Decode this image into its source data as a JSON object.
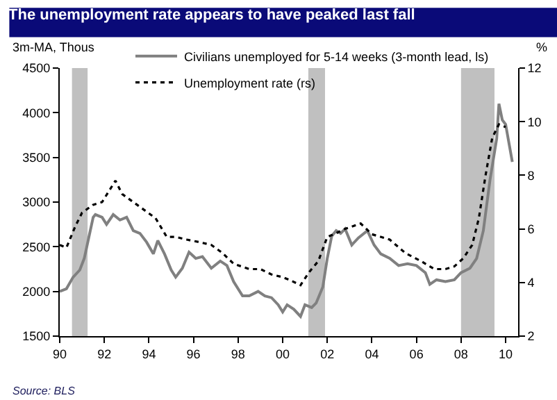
{
  "chart_data": {
    "type": "line",
    "title": "The unemployment rate appears to have peaked last fall",
    "ylabel": "3m-MA, Thous",
    "y2label": "%",
    "annotations": [
      "Source: BLS"
    ],
    "xlim": [
      1990,
      2010.56
    ],
    "xticks": [
      {
        "value": 1990,
        "label": "90"
      },
      {
        "value": 1992,
        "label": "92"
      },
      {
        "value": 1994,
        "label": "94"
      },
      {
        "value": 1996,
        "label": "96"
      },
      {
        "value": 1998,
        "label": "98"
      },
      {
        "value": 2000,
        "label": "00"
      },
      {
        "value": 2002,
        "label": "02"
      },
      {
        "value": 2004,
        "label": "04"
      },
      {
        "value": 2006,
        "label": "06"
      },
      {
        "value": 2008,
        "label": "08"
      },
      {
        "value": 2010,
        "label": "10"
      }
    ],
    "ylim": [
      1500,
      4500
    ],
    "yticks": [
      1500,
      2000,
      2500,
      3000,
      3500,
      4000,
      4500
    ],
    "y2lim": [
      2,
      12
    ],
    "y2ticks": [
      2,
      4,
      6,
      8,
      10,
      12
    ],
    "grid": false,
    "legend": "top",
    "bands": [
      {
        "axis": "x",
        "from": 1990.55,
        "to": 1991.25,
        "color": "#c0c0c0"
      },
      {
        "axis": "x",
        "from": 2001.15,
        "to": 2001.9,
        "color": "#c0c0c0"
      },
      {
        "axis": "x",
        "from": 2008.0,
        "to": 2009.5,
        "color": "#c0c0c0"
      }
    ],
    "series": [
      {
        "name": "Civilians unemployed for 5-14 weeks (3-month lead, ls)",
        "color": "#808080",
        "line_style": "solid",
        "x": [
          1990.0,
          1990.3,
          1990.6,
          1990.9,
          1991.1,
          1991.3,
          1991.5,
          1991.6,
          1991.9,
          1992.1,
          1992.4,
          1992.7,
          1993.0,
          1993.3,
          1993.6,
          1993.9,
          1994.2,
          1994.4,
          1994.7,
          1995.0,
          1995.2,
          1995.5,
          1995.8,
          1996.1,
          1996.4,
          1996.8,
          1997.2,
          1997.5,
          1997.8,
          1998.2,
          1998.5,
          1998.9,
          1999.2,
          1999.5,
          1999.8,
          2000.0,
          2000.2,
          2000.5,
          2000.8,
          2001.0,
          2001.3,
          2001.5,
          2001.8,
          2002.0,
          2002.2,
          2002.4,
          2002.6,
          2002.8,
          2003.1,
          2003.4,
          2003.8,
          2004.1,
          2004.4,
          2004.8,
          2005.2,
          2005.6,
          2006.0,
          2006.4,
          2006.6,
          2006.9,
          2007.3,
          2007.7,
          2008.0,
          2008.4,
          2008.7,
          2009.0,
          2009.3,
          2009.6,
          2009.7,
          2009.85,
          2010.0,
          2010.3
        ],
        "values": [
          2000,
          2030,
          2160,
          2240,
          2370,
          2600,
          2830,
          2860,
          2830,
          2750,
          2860,
          2800,
          2830,
          2680,
          2650,
          2550,
          2420,
          2570,
          2420,
          2240,
          2160,
          2260,
          2440,
          2370,
          2390,
          2260,
          2340,
          2290,
          2110,
          1950,
          1950,
          2000,
          1950,
          1930,
          1850,
          1770,
          1850,
          1800,
          1720,
          1850,
          1820,
          1870,
          2050,
          2370,
          2620,
          2680,
          2650,
          2700,
          2520,
          2600,
          2680,
          2520,
          2420,
          2370,
          2290,
          2310,
          2290,
          2210,
          2080,
          2130,
          2110,
          2130,
          2210,
          2260,
          2370,
          2680,
          3250,
          3710,
          4100,
          3920,
          3870,
          3450
        ]
      },
      {
        "name": "Unemployment rate (rs)",
        "color": "#000000",
        "line_style": "dotted",
        "axis": "y2",
        "x": [
          1990.0,
          1990.3,
          1990.7,
          1991.0,
          1991.5,
          1991.9,
          1992.2,
          1992.5,
          1992.8,
          1993.3,
          1993.8,
          1994.3,
          1994.8,
          1995.2,
          1995.7,
          1996.3,
          1996.8,
          1997.3,
          1997.8,
          1998.5,
          1999.0,
          1999.5,
          2000.0,
          2000.3,
          2000.8,
          2001.2,
          2001.6,
          2002.0,
          2002.3,
          2002.8,
          2003.5,
          2004.0,
          2004.8,
          2005.5,
          2006.2,
          2006.8,
          2007.3,
          2007.7,
          2008.1,
          2008.5,
          2008.8,
          2009.1,
          2009.4,
          2009.7,
          2010.0
        ],
        "values": [
          5.4,
          5.3,
          6.1,
          6.6,
          6.9,
          7.0,
          7.4,
          7.8,
          7.3,
          7.0,
          6.7,
          6.4,
          5.7,
          5.7,
          5.6,
          5.5,
          5.4,
          5.1,
          4.7,
          4.5,
          4.5,
          4.3,
          4.2,
          4.1,
          3.9,
          4.4,
          4.8,
          5.7,
          5.8,
          6.0,
          6.2,
          5.8,
          5.6,
          5.1,
          4.8,
          4.5,
          4.5,
          4.6,
          4.9,
          5.4,
          6.4,
          8.0,
          9.4,
          9.9,
          9.8
        ]
      }
    ]
  }
}
